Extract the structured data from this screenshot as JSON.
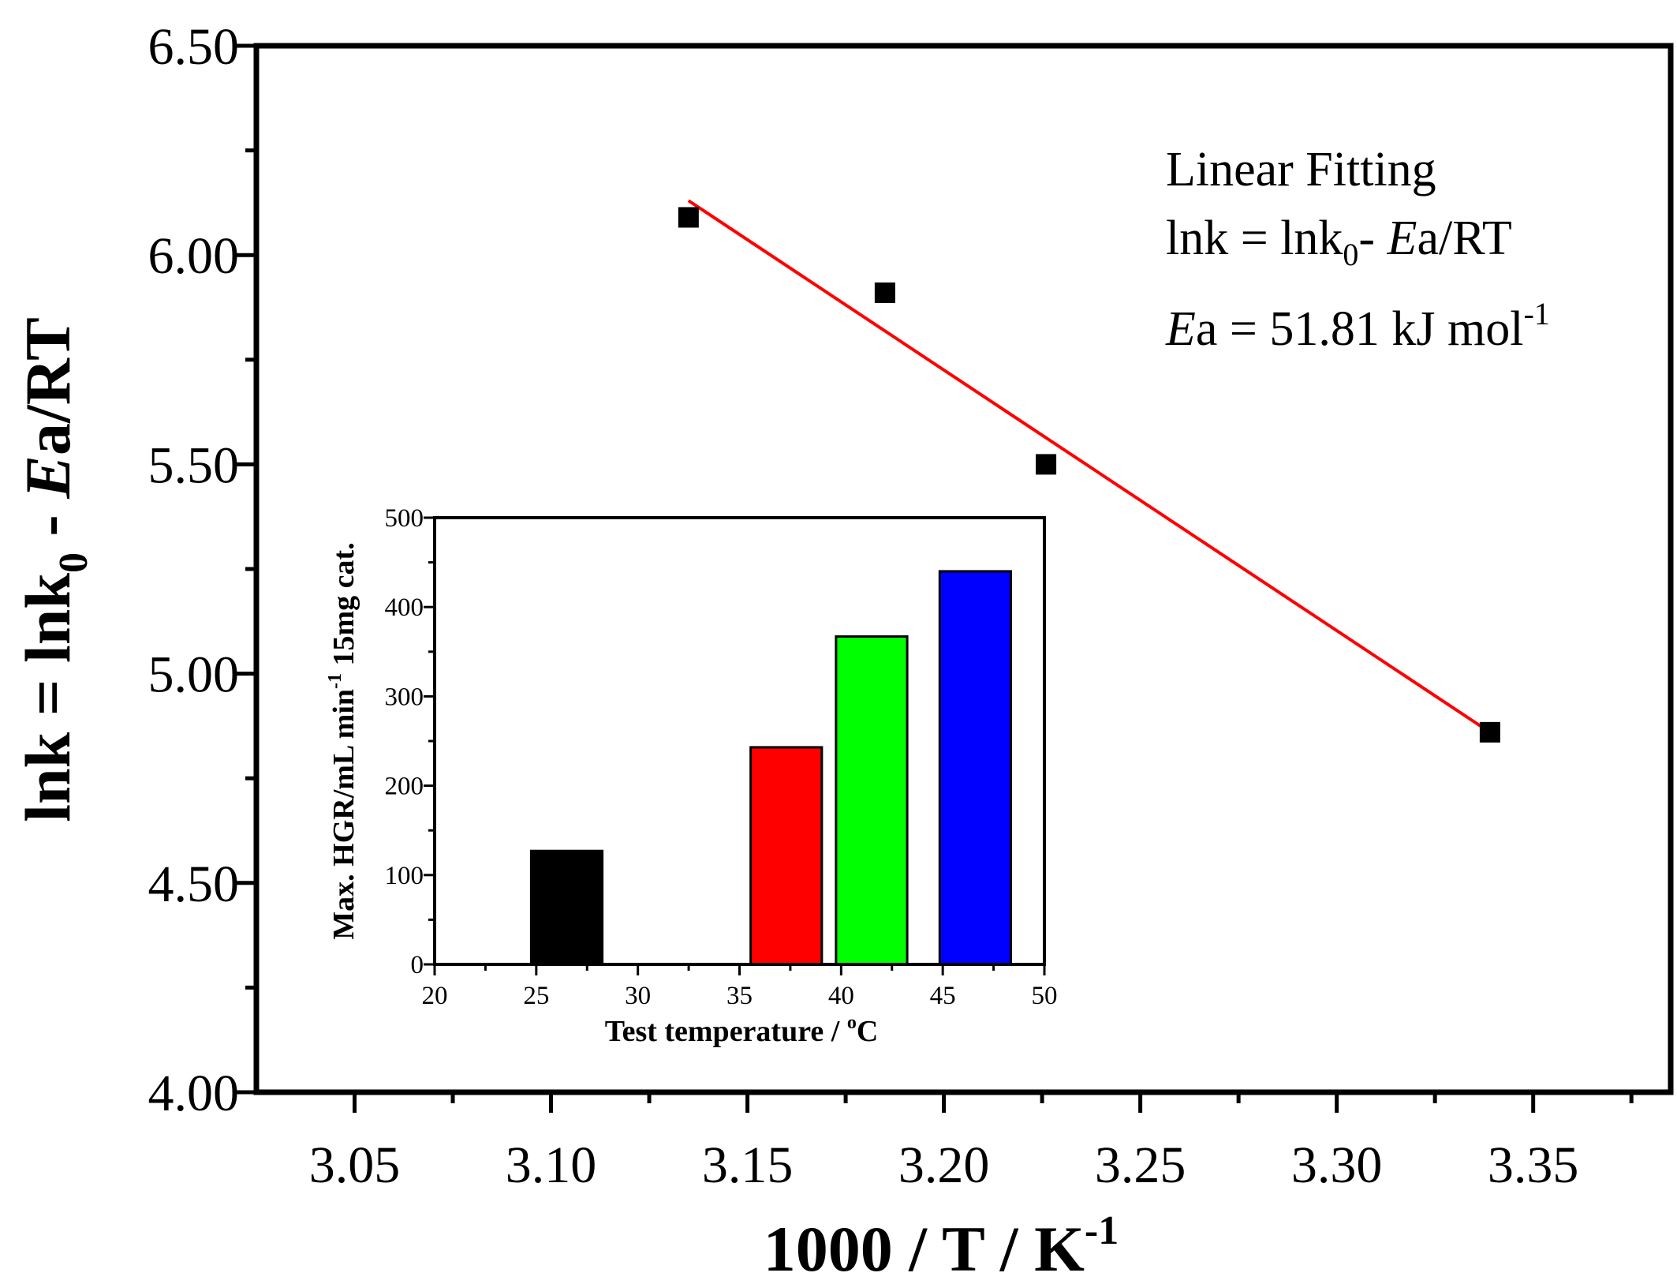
{
  "chart_data": [
    {
      "type": "scatter",
      "name": "arrhenius-plot",
      "x": [
        3.135,
        3.185,
        3.226,
        3.339
      ],
      "y": [
        6.09,
        5.91,
        5.5,
        4.86
      ],
      "series": [
        {
          "name": "data",
          "x": [
            3.135,
            3.185,
            3.226,
            3.339
          ],
          "y": [
            6.09,
            5.91,
            5.5,
            4.86
          ],
          "marker": "square",
          "color": "#000000"
        },
        {
          "name": "Linear Fitting",
          "x": [
            3.135,
            3.339
          ],
          "y": [
            6.13,
            4.86
          ],
          "style": "line",
          "color": "#ff0000"
        }
      ],
      "xlim": [
        3.025,
        3.385
      ],
      "ylim": [
        4.0,
        6.5
      ],
      "xticks": [
        "3.05",
        "3.10",
        "3.15",
        "3.20",
        "3.25",
        "3.30",
        "3.35"
      ],
      "yticks": [
        "4.00",
        "4.50",
        "5.00",
        "5.50",
        "6.00",
        "6.50"
      ],
      "xlabel": {
        "main": "1000 / T / K",
        "sup": "-1"
      },
      "ylabel": {
        "part1": "lnk = lnk",
        "sub": "0",
        "part2": " - ",
        "italic": "E",
        "part3": "a/RT"
      },
      "annotation": {
        "line1": "Linear Fitting",
        "line2_a": "lnk = lnk",
        "line2_sub": "0",
        "line2_b": "- ",
        "line2_italic": "E",
        "line2_c": "a/RT",
        "line3_italic": "E",
        "line3_b": "a = 51.81 kJ mol",
        "line3_sup": "-1"
      }
    },
    {
      "type": "bar",
      "name": "inset-hgr",
      "categories": [
        "25",
        "35",
        "40",
        "45"
      ],
      "x": [
        26.5,
        37.3,
        41.5,
        46.6
      ],
      "values": [
        127,
        243,
        367,
        440
      ],
      "colors": [
        "#000000",
        "#ff0000",
        "#00ff00",
        "#0000ff"
      ],
      "xlim": [
        20,
        50
      ],
      "ylim": [
        0,
        500
      ],
      "xticks": [
        "20",
        "25",
        "30",
        "35",
        "40",
        "45",
        "50"
      ],
      "yticks": [
        "0",
        "100",
        "200",
        "300",
        "400",
        "500"
      ],
      "xlabel": {
        "main": "Test temperature / ",
        "sup": "o",
        "end": "C"
      },
      "ylabel": {
        "main": "Max. HGR/mL min",
        "sup": "-1",
        "end": " 15mg cat."
      }
    }
  ]
}
